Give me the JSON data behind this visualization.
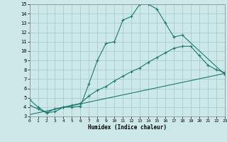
{
  "xlabel": "Humidex (Indice chaleur)",
  "xlim": [
    0,
    23
  ],
  "ylim": [
    3,
    15
  ],
  "yticks": [
    3,
    4,
    5,
    6,
    7,
    8,
    9,
    10,
    11,
    12,
    13,
    14,
    15
  ],
  "xticks": [
    0,
    1,
    2,
    3,
    4,
    5,
    6,
    7,
    8,
    9,
    10,
    11,
    12,
    13,
    14,
    15,
    16,
    17,
    18,
    19,
    20,
    21,
    22,
    23
  ],
  "bg_color": "#cce8e8",
  "line_color": "#1a7a6e",
  "grid_color": "#aacccc",
  "line1_x": [
    0,
    1,
    2,
    3,
    4,
    5,
    6,
    7,
    8,
    9,
    10,
    11,
    12,
    13,
    14,
    15,
    16,
    17,
    18,
    23
  ],
  "line1_y": [
    4.8,
    4.0,
    3.4,
    3.8,
    4.0,
    4.0,
    4.1,
    6.5,
    9.0,
    10.8,
    11.0,
    13.3,
    13.7,
    15.0,
    15.0,
    14.5,
    13.0,
    11.5,
    11.7,
    7.5
  ],
  "line2_x": [
    0,
    1,
    2,
    3,
    4,
    5,
    6,
    7,
    8,
    9,
    10,
    11,
    12,
    13,
    14,
    15,
    16,
    17,
    18,
    19,
    20,
    21,
    22,
    23
  ],
  "line2_y": [
    4.2,
    3.8,
    3.4,
    3.5,
    4.0,
    4.2,
    4.4,
    5.2,
    5.8,
    6.2,
    6.8,
    7.3,
    7.8,
    8.2,
    8.8,
    9.3,
    9.8,
    10.3,
    10.5,
    10.5,
    9.5,
    8.5,
    8.0,
    7.7
  ],
  "line3_x": [
    0,
    23
  ],
  "line3_y": [
    3.2,
    7.6
  ]
}
